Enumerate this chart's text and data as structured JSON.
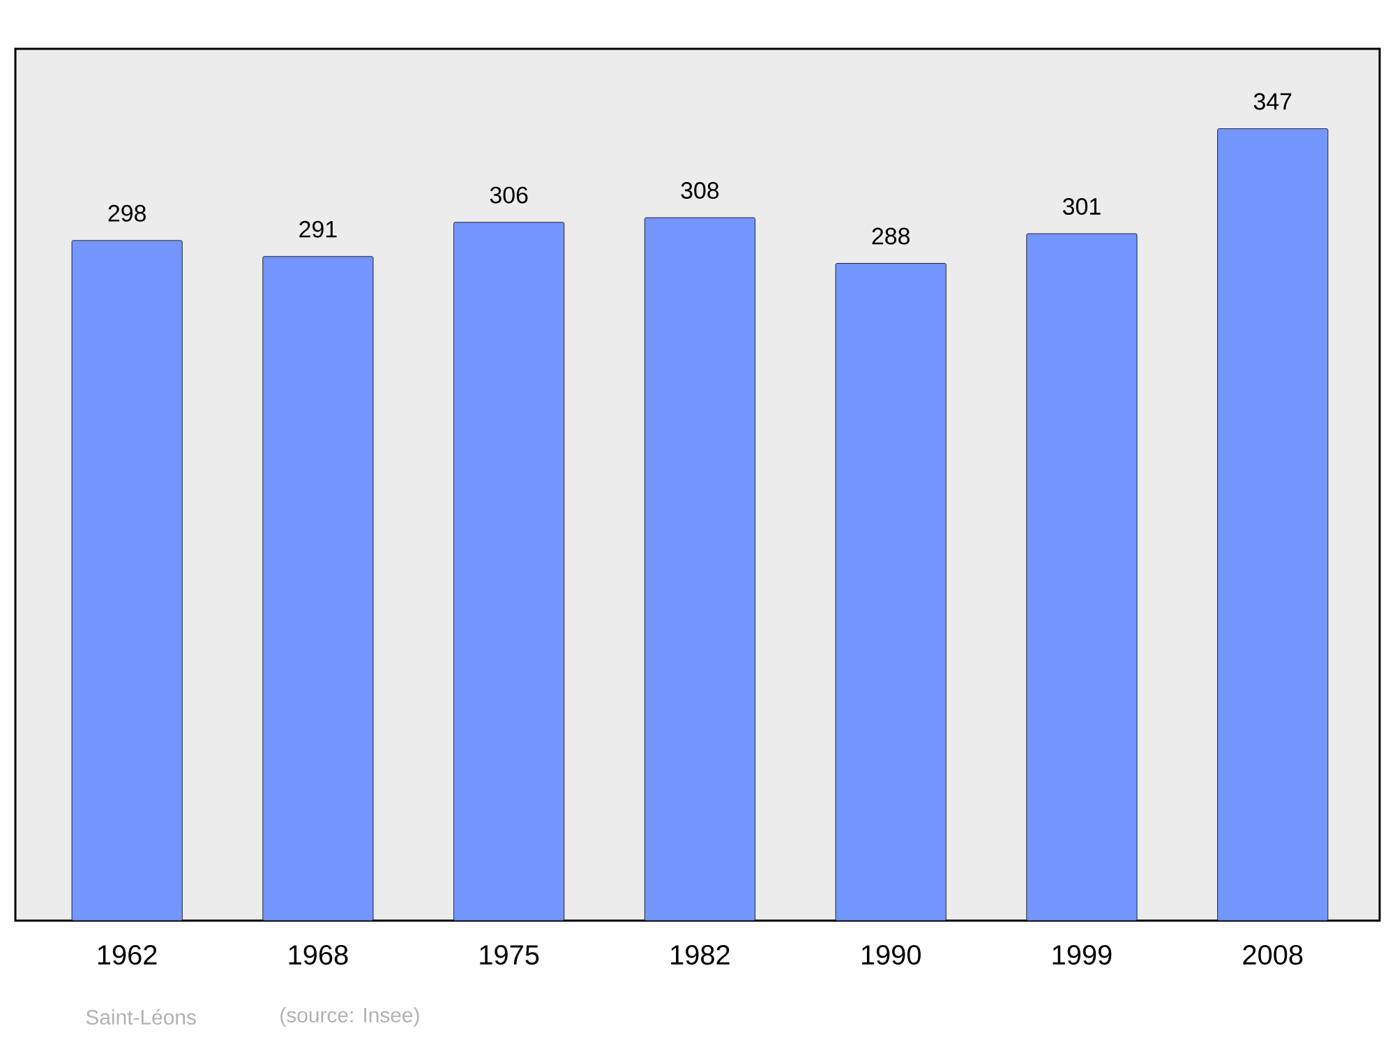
{
  "chart_data": {
    "type": "bar",
    "categories": [
      "1962",
      "1968",
      "1975",
      "1982",
      "1990",
      "1999",
      "2008"
    ],
    "values": [
      298,
      291,
      306,
      308,
      288,
      301,
      347
    ],
    "color": "#7396ff",
    "ylim": [
      0,
      382
    ],
    "data_labels": true,
    "tick_labels": "x",
    "annotations": [
      "Saint-Léons",
      "(source: Insee)"
    ]
  }
}
